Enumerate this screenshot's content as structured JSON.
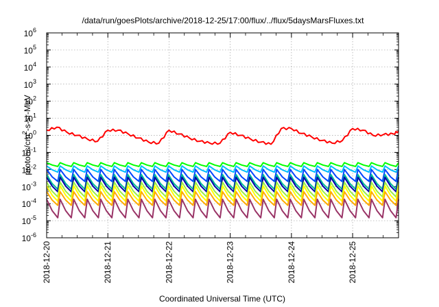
{
  "chart_data": {
    "type": "line",
    "title": "/data/run/goesPlots/archive/2018-12-25/17:00/flux/../flux/5daysMarsFluxes.txt",
    "xlabel": "Coordinated Universal Time (UTC)",
    "ylabel": {
      "pre": "protons/cm",
      "sup": "2",
      "post": "-s-sr-MeV"
    },
    "y_scale": "log",
    "y_exp_range": [
      -6,
      6
    ],
    "x_range_days": [
      "2018-12-20",
      "2018-12-25T18:00"
    ],
    "x_ticks": [
      "2018-12-20",
      "2018-12-21",
      "2018-12-22",
      "2018-12-23",
      "2018-12-24",
      "2018-12-25"
    ],
    "y_ticks": [
      "-6",
      "-5",
      "-4",
      "-3",
      "-2",
      "-1",
      "0",
      "1",
      "2",
      "3",
      "4",
      "5",
      "6"
    ],
    "grid": true,
    "background": "#ffffff",
    "series": [
      {
        "color": "#ff0000",
        "style": "trend",
        "points": [
          [
            "2018-12-20T00:00",
            2.0
          ],
          [
            "2018-12-20T04:00",
            3.0
          ],
          [
            "2018-12-20T08:00",
            1.5
          ],
          [
            "2018-12-20T12:00",
            1.0
          ],
          [
            "2018-12-20T16:00",
            0.6
          ],
          [
            "2018-12-20T20:00",
            0.45
          ],
          [
            "2018-12-21T00:00",
            2.0
          ],
          [
            "2018-12-21T04:00",
            2.0
          ],
          [
            "2018-12-21T08:00",
            1.2
          ],
          [
            "2018-12-21T12:00",
            0.7
          ],
          [
            "2018-12-21T16:00",
            0.4
          ],
          [
            "2018-12-21T20:00",
            0.35
          ],
          [
            "2018-12-22T00:00",
            2.0
          ],
          [
            "2018-12-22T04:00",
            1.2
          ],
          [
            "2018-12-22T08:00",
            0.7
          ],
          [
            "2018-12-22T12:00",
            0.45
          ],
          [
            "2018-12-22T16:00",
            0.35
          ],
          [
            "2018-12-22T20:00",
            0.35
          ],
          [
            "2018-12-23T00:00",
            1.5
          ],
          [
            "2018-12-23T04:00",
            1.0
          ],
          [
            "2018-12-23T08:00",
            0.6
          ],
          [
            "2018-12-23T12:00",
            0.4
          ],
          [
            "2018-12-23T16:00",
            0.3
          ],
          [
            "2018-12-23T20:00",
            2.5
          ],
          [
            "2018-12-24T00:00",
            2.5
          ],
          [
            "2018-12-24T04:00",
            1.3
          ],
          [
            "2018-12-24T08:00",
            0.8
          ],
          [
            "2018-12-24T12:00",
            0.5
          ],
          [
            "2018-12-24T16:00",
            0.35
          ],
          [
            "2018-12-24T20:00",
            0.5
          ],
          [
            "2018-12-25T00:00",
            2.5
          ],
          [
            "2018-12-25T04:00",
            2.0
          ],
          [
            "2018-12-25T08:00",
            1.0
          ],
          [
            "2018-12-25T12:00",
            1.1
          ],
          [
            "2018-12-25T16:00",
            1.2
          ],
          [
            "2018-12-25T18:00",
            1.8
          ]
        ]
      },
      {
        "color": "#00ff00",
        "style": "sawtooth",
        "peak": 0.025,
        "trough": 0.015,
        "cycles": 26
      },
      {
        "color": "#00bbff",
        "style": "sawtooth",
        "peak": 0.016,
        "trough": 0.007,
        "cycles": 26
      },
      {
        "color": "#0044ff",
        "style": "sawtooth",
        "peak": 0.01,
        "trough": 0.002,
        "cycles": 26
      },
      {
        "color": "#00bb99",
        "style": "sawtooth",
        "peak": 0.005,
        "trough": 0.0007,
        "cycles": 26
      },
      {
        "color": "#0000aa",
        "style": "sawtooth",
        "peak": 0.0035,
        "trough": 0.0005,
        "cycles": 26
      },
      {
        "color": "#99ee44",
        "style": "sawtooth",
        "peak": 0.0018,
        "trough": 0.00025,
        "cycles": 26
      },
      {
        "color": "#ffff00",
        "style": "sawtooth",
        "peak": 0.0011,
        "trough": 0.00014,
        "cycles": 26
      },
      {
        "color": "#ffaa00",
        "style": "sawtooth",
        "peak": 0.0005,
        "trough": 8e-05,
        "cycles": 26
      },
      {
        "color": "#993366",
        "style": "sawtooth",
        "peak": 0.00018,
        "trough": 1.5e-05,
        "cycles": 26
      }
    ]
  }
}
